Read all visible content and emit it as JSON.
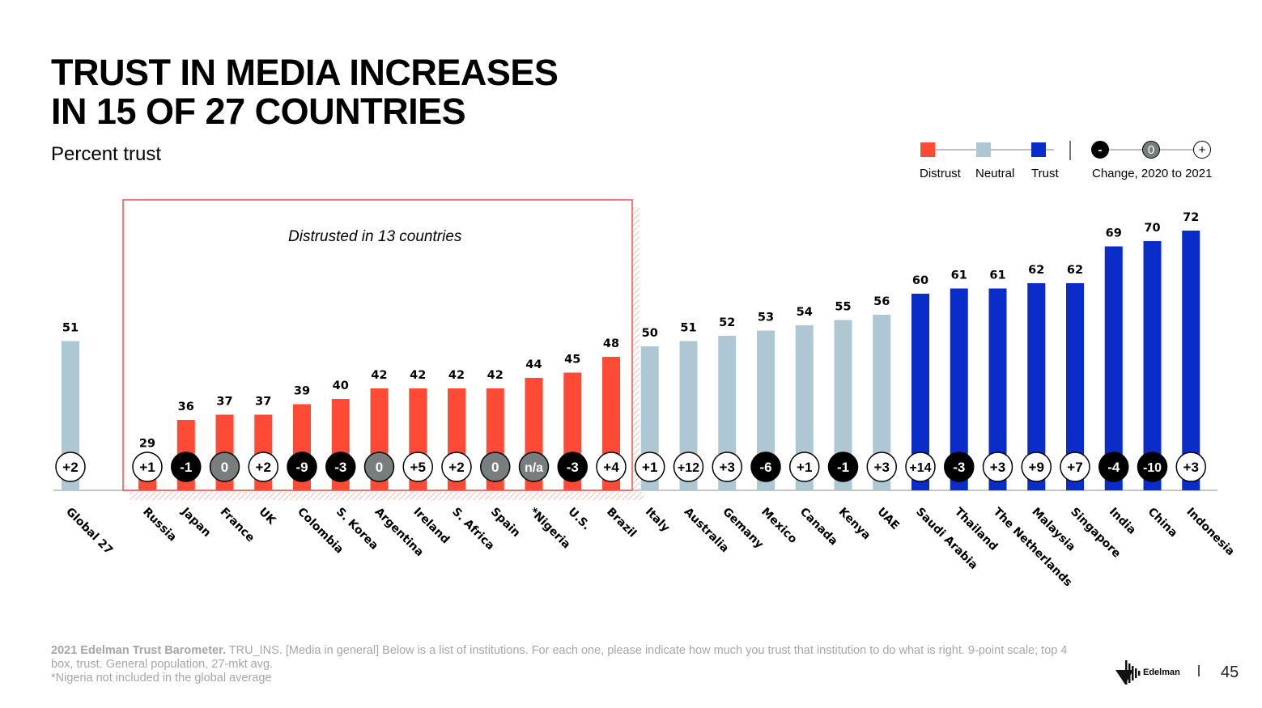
{
  "header": {
    "title": "TRUST IN MEDIA INCREASES\nIN 15 OF 27 COUNTRIES",
    "subtitle": "Percent trust"
  },
  "legend": {
    "categories": [
      {
        "label": "Distrust",
        "color": "#ff4b36"
      },
      {
        "label": "Neutral",
        "color": "#aec8d3"
      },
      {
        "label": "Trust",
        "color": "#0a2cc8"
      }
    ],
    "change_symbols": {
      "negative": "-",
      "zero": "0",
      "positive": "+"
    },
    "change_label": "Change, 2020 to 2021"
  },
  "callout": {
    "label": "Distrusted in 13 countries",
    "color": "#f0504a"
  },
  "colors": {
    "distrust": "#ff4b36",
    "neutral": "#aec8d3",
    "trust": "#0a2cc8",
    "change_negative": "#000000",
    "change_zero": "#787d7d",
    "change_positive": "#ffffff"
  },
  "chart_data": {
    "type": "bar",
    "title": "TRUST IN MEDIA INCREASES IN 15 OF 27 COUNTRIES",
    "subtitle": "Percent trust",
    "xlabel": "",
    "ylabel": "Percent trust",
    "ylim": [
      0,
      100
    ],
    "grid": false,
    "legend_position": "top-right",
    "categories": [
      "Global 27",
      "Russia",
      "Japan",
      "France",
      "UK",
      "Colombia",
      "S. Korea",
      "Argentina",
      "Ireland",
      "S. Africa",
      "Spain",
      "*Nigeria",
      "U.S.",
      "Brazil",
      "Italy",
      "Australia",
      "Gemany",
      "Mexico",
      "Canada",
      "Kenya",
      "UAE",
      "Saudi Arabia",
      "Thailand",
      "The Netherlands",
      "Malaysia",
      "Singapore",
      "India",
      "China",
      "Indonesia"
    ],
    "values": [
      51,
      29,
      36,
      37,
      37,
      39,
      40,
      42,
      42,
      42,
      42,
      44,
      45,
      48,
      50,
      51,
      52,
      53,
      54,
      55,
      56,
      60,
      61,
      61,
      62,
      62,
      69,
      70,
      72
    ],
    "levels": [
      "neutral",
      "distrust",
      "distrust",
      "distrust",
      "distrust",
      "distrust",
      "distrust",
      "distrust",
      "distrust",
      "distrust",
      "distrust",
      "distrust",
      "distrust",
      "distrust",
      "neutral",
      "neutral",
      "neutral",
      "neutral",
      "neutral",
      "neutral",
      "neutral",
      "trust",
      "trust",
      "trust",
      "trust",
      "trust",
      "trust",
      "trust",
      "trust"
    ],
    "changes": [
      "+2",
      "+1",
      "-1",
      "0",
      "+2",
      "-9",
      "-3",
      "0",
      "+5",
      "+2",
      "0",
      "n/a",
      "-3",
      "+4",
      "+1",
      "+12",
      "+3",
      "-6",
      "+1",
      "-1",
      "+3",
      "+14",
      "-3",
      "+3",
      "+9",
      "+7",
      "-4",
      "-10",
      "+3"
    ],
    "legend": [
      "Distrust",
      "Neutral",
      "Trust",
      "Change, 2020 to 2021"
    ]
  },
  "footer": {
    "source_bold": "2021 Edelman Trust Barometer.",
    "source_text": " TRU_INS. [Media in general] Below is a list of institutions. For each one, please indicate how much you trust that institution to do what is right. 9-point scale; top 4 box, trust. General population, 27-mkt avg.",
    "note": "*Nigeria not included in the global average",
    "brand": "Edelman",
    "page_number": "45"
  }
}
